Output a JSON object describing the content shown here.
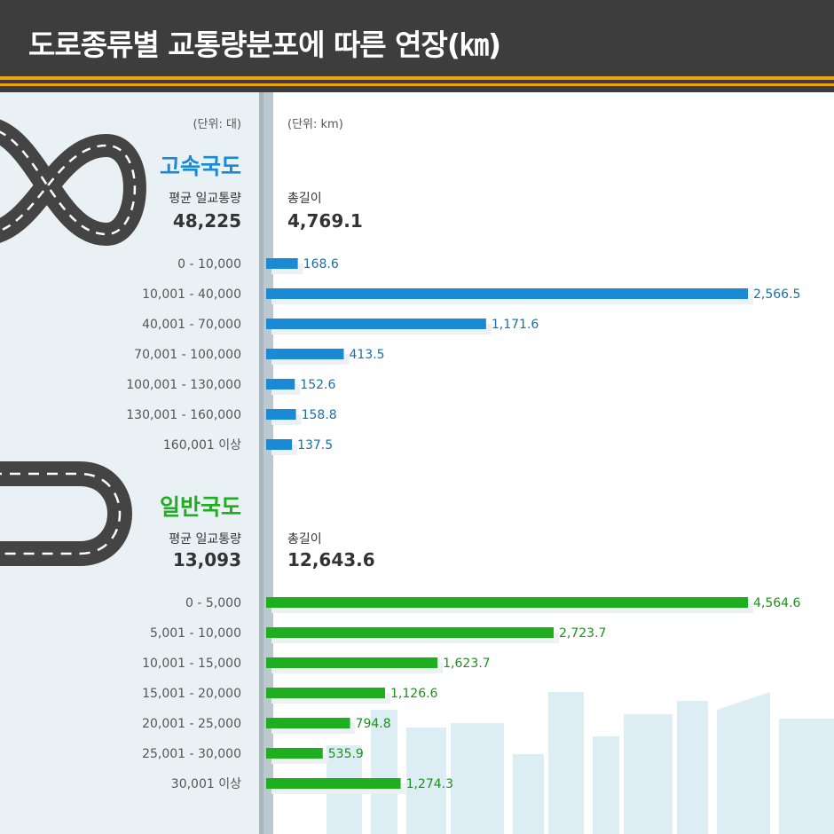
{
  "header": {
    "title": "도로종류별 교통량분포에 따른 연장(㎞)"
  },
  "units": {
    "left": "(단위: 대)",
    "right": "(단위: km)"
  },
  "colors": {
    "expressway": "#1a8ad4",
    "national": "#1fae1f",
    "header_bg": "#3d3d3d",
    "accent": "#f2a20c"
  },
  "chart_data": [
    {
      "type": "bar",
      "title": "고속국도",
      "avg_label": "평균 일교통량",
      "avg_value": "48,225",
      "total_label": "총길이",
      "total_value": "4,769.1",
      "categories": [
        "0 - 10,000",
        "10,001 - 40,000",
        "40,001 - 70,000",
        "70,001 - 100,000",
        "100,001 - 130,000",
        "130,001 - 160,000",
        "160,001 이상"
      ],
      "values": [
        168.6,
        2566.5,
        1171.6,
        413.5,
        152.6,
        158.8,
        137.5
      ],
      "value_labels": [
        "168.6",
        "2,566.5",
        "1,171.6",
        "413.5",
        "152.6",
        "158.8",
        "137.5"
      ]
    },
    {
      "type": "bar",
      "title": "일반국도",
      "avg_label": "평균 일교통량",
      "avg_value": "13,093",
      "total_label": "총길이",
      "total_value": "12,643.6",
      "categories": [
        "0 - 5,000",
        "5,001 - 10,000",
        "10,001 - 15,000",
        "15,001 - 20,000",
        "20,001 - 25,000",
        "25,001 - 30,000",
        "30,001 이상"
      ],
      "values": [
        4564.6,
        2723.7,
        1623.7,
        1126.6,
        794.8,
        535.9,
        1274.3
      ],
      "value_labels": [
        "4,564.6",
        "2,723.7",
        "1,623.7",
        "1,126.6",
        "794.8",
        "535.9",
        "1,274.3"
      ]
    }
  ]
}
